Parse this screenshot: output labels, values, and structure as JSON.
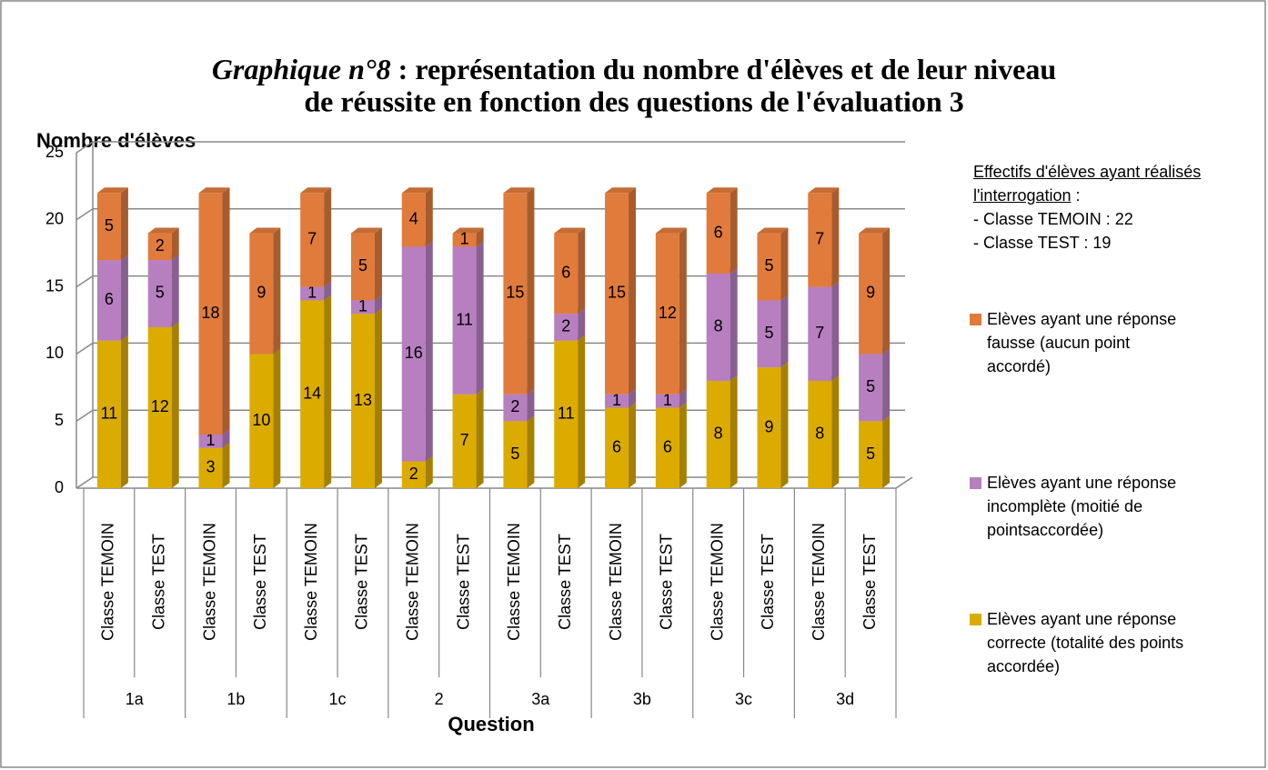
{
  "chart_data": {
    "type": "stacked_bar",
    "title_parts": [
      "Graphique n°8",
      ": représentation du nombre d'élèves et de leur niveau",
      "de réussite en fonction des questions de l'évaluation 3"
    ],
    "y_label": "Nombre d'élèves",
    "x_label": "Question",
    "categories": [
      "Classe TEMOIN",
      "Classe TEST",
      "Classe TEMOIN",
      "Classe TEST",
      "Classe TEMOIN",
      "Classe TEST",
      "Classe TEMOIN",
      "Classe TEST",
      "Classe TEMOIN",
      "Classe TEST",
      "Classe TEMOIN",
      "Classe TEST",
      "Classe TEMOIN",
      "Classe TEST",
      "Classe TEMOIN",
      "Classe TEST"
    ],
    "groups": [
      "1a",
      "1b",
      "1c",
      "2",
      "3a",
      "3b",
      "3c",
      "3d"
    ],
    "series": [
      {
        "name": "Elèves ayant une réponse correcte (totalité des points accordée)",
        "color": "#dcab00",
        "values": [
          11,
          12,
          3,
          10,
          14,
          13,
          2,
          7,
          5,
          11,
          6,
          6,
          8,
          9,
          8,
          5
        ]
      },
      {
        "name": "Elèves ayant une réponse incomplète (moitié de pointsaccordée)",
        "color": "#b77fc0",
        "values": [
          6,
          5,
          1,
          null,
          1,
          1,
          16,
          11,
          2,
          2,
          1,
          1,
          8,
          5,
          7,
          5
        ]
      },
      {
        "name": "Elèves ayant une réponse fausse (aucun point accordé)",
        "color": "#e07b3c",
        "values": [
          5,
          2,
          18,
          9,
          7,
          5,
          4,
          1,
          15,
          6,
          15,
          12,
          6,
          5,
          7,
          9
        ]
      }
    ],
    "ylim": [
      0,
      25
    ],
    "yticks": [
      0,
      5,
      10,
      15,
      20,
      25
    ],
    "grid": true,
    "annotation": {
      "heading": "Effectifs d'élèves ayant réalisés l'interrogation",
      "separator": ":",
      "lines": [
        "- Classe TEMOIN : 22",
        "- Classe TEST : 19"
      ]
    }
  }
}
